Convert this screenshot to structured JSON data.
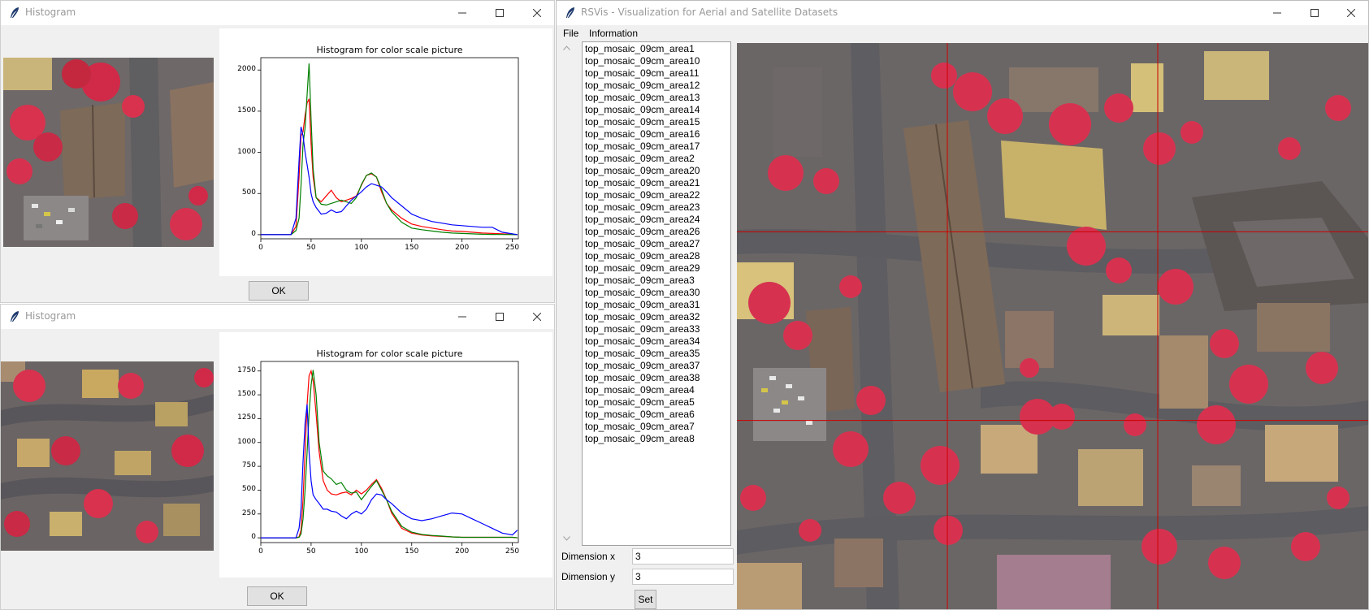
{
  "histogram_windows": [
    {
      "title": "Histogram",
      "chart_title": "Histogram for color scale picture",
      "ok_label": "OK",
      "y_ticks": [
        "2000",
        "1500",
        "1000",
        "500",
        "0"
      ],
      "x_ticks": [
        "0",
        "50",
        "100",
        "150",
        "200",
        "250"
      ]
    },
    {
      "title": "Histogram",
      "chart_title": "Histogram for color scale picture",
      "ok_label": "OK",
      "y_ticks": [
        "1750",
        "1500",
        "1250",
        "1000",
        "750",
        "500",
        "250",
        "0"
      ],
      "x_ticks": [
        "0",
        "50",
        "100",
        "150",
        "200",
        "250"
      ]
    }
  ],
  "chart_data": [
    {
      "type": "line",
      "title": "Histogram for color scale picture",
      "xlim": [
        0,
        256
      ],
      "ylim": [
        -50,
        2150
      ],
      "x": [
        0,
        30,
        35,
        38,
        40,
        42,
        44,
        46,
        48,
        50,
        52,
        55,
        60,
        65,
        70,
        75,
        80,
        85,
        90,
        95,
        100,
        105,
        110,
        115,
        120,
        125,
        130,
        140,
        150,
        160,
        170,
        180,
        190,
        200,
        210,
        220,
        230,
        240,
        255
      ],
      "series": [
        {
          "color": "#ff0000",
          "values": [
            0,
            0,
            100,
            700,
            1200,
            1250,
            1450,
            1600,
            1650,
            1100,
            700,
            450,
            400,
            470,
            540,
            450,
            400,
            420,
            440,
            470,
            600,
            720,
            740,
            700,
            520,
            380,
            300,
            200,
            130,
            100,
            80,
            60,
            45,
            40,
            30,
            20,
            15,
            10,
            0
          ]
        },
        {
          "color": "#008000",
          "values": [
            0,
            0,
            50,
            200,
            600,
            1100,
            1300,
            1700,
            2080,
            1400,
            800,
            450,
            370,
            360,
            380,
            400,
            420,
            400,
            380,
            450,
            610,
            720,
            750,
            700,
            550,
            380,
            280,
            150,
            80,
            60,
            45,
            30,
            20,
            15,
            10,
            5,
            3,
            2,
            0
          ]
        },
        {
          "color": "#0000ff",
          "values": [
            0,
            0,
            200,
            900,
            1310,
            1200,
            1000,
            850,
            700,
            500,
            400,
            330,
            250,
            260,
            300,
            270,
            280,
            350,
            420,
            470,
            520,
            580,
            620,
            600,
            580,
            520,
            450,
            350,
            250,
            200,
            160,
            140,
            120,
            110,
            100,
            90,
            90,
            30,
            0
          ]
        }
      ]
    },
    {
      "type": "line",
      "title": "Histogram for color scale picture",
      "xlim": [
        0,
        256
      ],
      "ylim": [
        -50,
        1850
      ],
      "x": [
        0,
        35,
        38,
        40,
        42,
        44,
        46,
        48,
        50,
        52,
        55,
        58,
        62,
        66,
        70,
        75,
        80,
        85,
        90,
        95,
        100,
        105,
        110,
        115,
        120,
        125,
        130,
        140,
        150,
        160,
        170,
        180,
        190,
        200,
        210,
        220,
        230,
        240,
        250,
        255
      ],
      "series": [
        {
          "color": "#ff0000",
          "values": [
            0,
            0,
            10,
            80,
            400,
            900,
            1400,
            1700,
            1750,
            1650,
            1300,
            900,
            600,
            500,
            460,
            450,
            470,
            480,
            450,
            500,
            460,
            500,
            560,
            610,
            520,
            400,
            260,
            100,
            50,
            30,
            20,
            15,
            10,
            5,
            5,
            5,
            5,
            5,
            5,
            0
          ]
        },
        {
          "color": "#008000",
          "values": [
            0,
            0,
            5,
            40,
            200,
            500,
            900,
            1300,
            1600,
            1760,
            1500,
            1000,
            700,
            650,
            620,
            560,
            580,
            500,
            470,
            480,
            400,
            470,
            540,
            600,
            500,
            400,
            280,
            120,
            60,
            35,
            25,
            18,
            10,
            5,
            5,
            5,
            5,
            5,
            5,
            0
          ]
        },
        {
          "color": "#0000ff",
          "values": [
            0,
            0,
            100,
            300,
            800,
            1200,
            1400,
            900,
            600,
            450,
            400,
            360,
            300,
            300,
            280,
            270,
            230,
            200,
            250,
            280,
            250,
            300,
            400,
            460,
            450,
            400,
            360,
            260,
            200,
            180,
            200,
            230,
            260,
            250,
            200,
            150,
            100,
            50,
            30,
            80
          ]
        }
      ]
    }
  ],
  "rsvis": {
    "title": "RSVis - Visualization for Aerial and Satellite Datasets",
    "menu": [
      "File",
      "Information"
    ],
    "files": [
      "top_mosaic_09cm_area1",
      "top_mosaic_09cm_area10",
      "top_mosaic_09cm_area11",
      "top_mosaic_09cm_area12",
      "top_mosaic_09cm_area13",
      "top_mosaic_09cm_area14",
      "top_mosaic_09cm_area15",
      "top_mosaic_09cm_area16",
      "top_mosaic_09cm_area17",
      "top_mosaic_09cm_area2",
      "top_mosaic_09cm_area20",
      "top_mosaic_09cm_area21",
      "top_mosaic_09cm_area22",
      "top_mosaic_09cm_area23",
      "top_mosaic_09cm_area24",
      "top_mosaic_09cm_area26",
      "top_mosaic_09cm_area27",
      "top_mosaic_09cm_area28",
      "top_mosaic_09cm_area29",
      "top_mosaic_09cm_area3",
      "top_mosaic_09cm_area30",
      "top_mosaic_09cm_area31",
      "top_mosaic_09cm_area32",
      "top_mosaic_09cm_area33",
      "top_mosaic_09cm_area34",
      "top_mosaic_09cm_area35",
      "top_mosaic_09cm_area37",
      "top_mosaic_09cm_area38",
      "top_mosaic_09cm_area4",
      "top_mosaic_09cm_area5",
      "top_mosaic_09cm_area6",
      "top_mosaic_09cm_area7",
      "top_mosaic_09cm_area8"
    ],
    "dimension_x_label": "Dimension x",
    "dimension_x_value": "3",
    "dimension_y_label": "Dimension y",
    "dimension_y_value": "3",
    "set_label": "Set",
    "grid_color": "#cc0000",
    "grid_divisions": 3
  }
}
